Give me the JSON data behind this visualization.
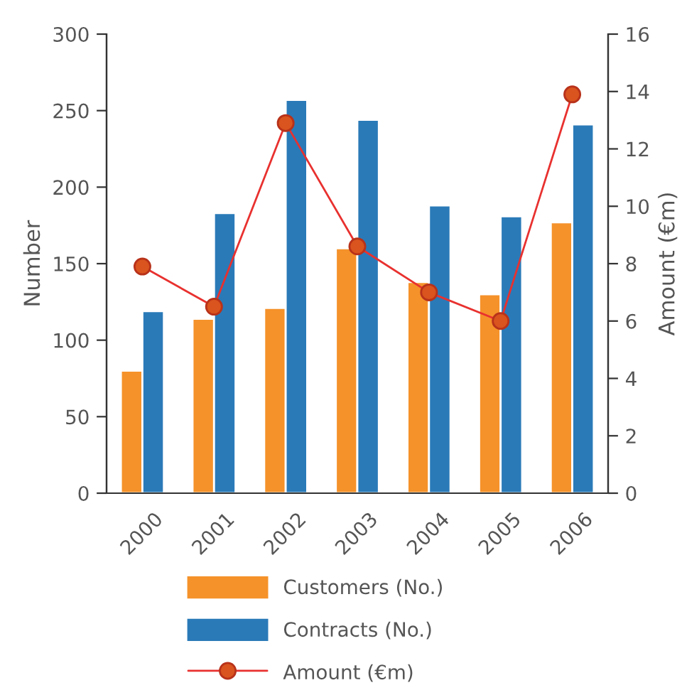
{
  "chart_data": {
    "type": "bar",
    "categories": [
      "2000",
      "2001",
      "2002",
      "2003",
      "2004",
      "2005",
      "2006"
    ],
    "series": [
      {
        "name": "Customers (No.)",
        "color": "#f5922a",
        "values": [
          80,
          114,
          121,
          160,
          138,
          130,
          177
        ]
      },
      {
        "name": "Contracts (No.)",
        "color": "#2a7ab8",
        "values": [
          119,
          183,
          257,
          244,
          188,
          181,
          241
        ]
      },
      {
        "name": "Amount (€m)",
        "type": "line",
        "axis": "y2",
        "color": "#e8312f",
        "marker": "circle",
        "values": [
          7.9,
          6.5,
          12.9,
          8.6,
          7.0,
          6.0,
          13.9
        ]
      }
    ],
    "ylabel": "Number",
    "y2label": "Amount (€m)",
    "ylim": [
      0,
      300
    ],
    "yticks": [
      0,
      50,
      100,
      150,
      200,
      250,
      300
    ],
    "y2lim": [
      0,
      16
    ],
    "y2ticks": [
      0,
      2,
      4,
      6,
      8,
      10,
      12,
      14,
      16
    ],
    "grid": false,
    "legend": "bottom"
  }
}
